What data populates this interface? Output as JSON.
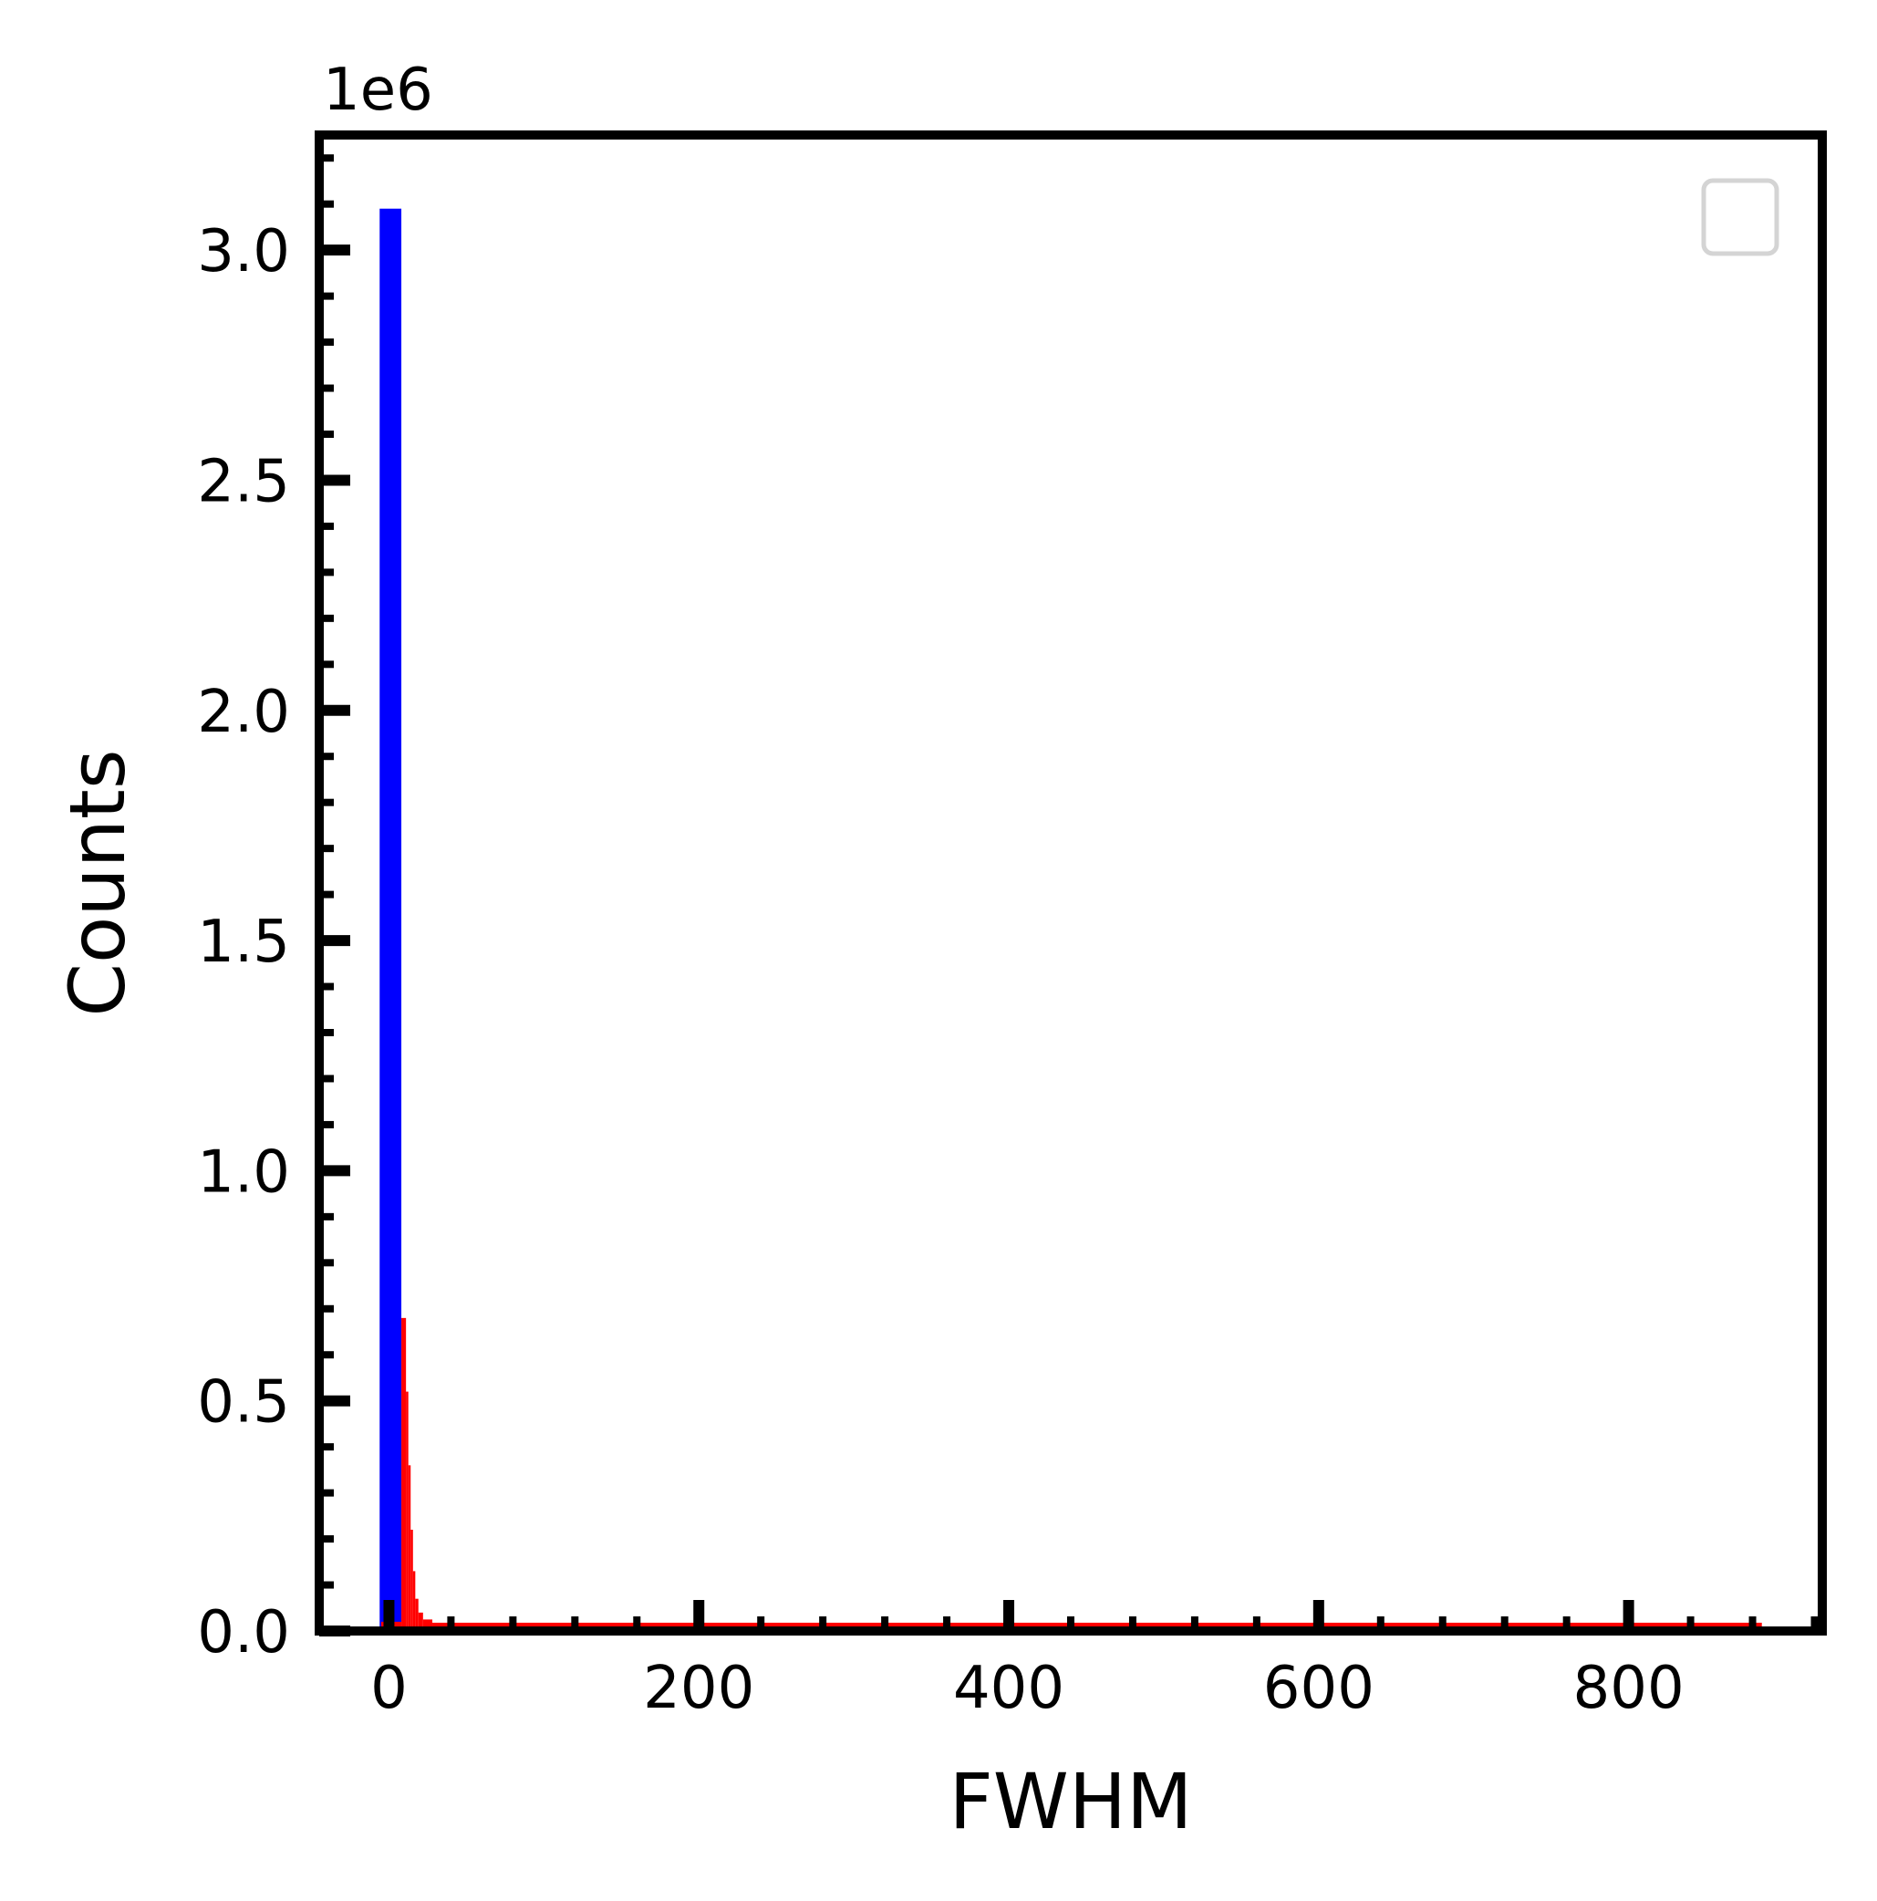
{
  "chart_data": {
    "type": "bar",
    "title": "",
    "xlabel": "FWHM",
    "ylabel": "Counts",
    "offset_label": "1e6",
    "xlim": [
      -45,
      925
    ],
    "ylim": [
      0,
      3.25
    ],
    "y_scale_multiplier": 1000000,
    "x_ticks": [
      0,
      200,
      400,
      600,
      800
    ],
    "x_tick_labels": [
      "0",
      "200",
      "400",
      "600",
      "800"
    ],
    "y_ticks": [
      0.0,
      0.5,
      1.0,
      1.5,
      2.0,
      2.5,
      3.0
    ],
    "y_tick_labels": [
      "0.0",
      "0.5",
      "1.0",
      "1.5",
      "2.0",
      "2.5",
      "3.0"
    ],
    "grid": false,
    "legend": {
      "placement": "top-right",
      "entries": []
    },
    "series": [
      {
        "color": "#0000ff",
        "bins": [
          {
            "x0": -6,
            "x1": 8,
            "value": 3.09
          }
        ]
      },
      {
        "color": "#ff0000",
        "bins": [
          {
            "x0": -5,
            "x1": 8,
            "value": 0.02
          },
          {
            "x0": 8,
            "x1": 11,
            "value": 0.68
          },
          {
            "x0": 11,
            "x1": 12.5,
            "value": 0.52
          },
          {
            "x0": 12.5,
            "x1": 14,
            "value": 0.36
          },
          {
            "x0": 14,
            "x1": 15.5,
            "value": 0.22
          },
          {
            "x0": 15.5,
            "x1": 17,
            "value": 0.13
          },
          {
            "x0": 17,
            "x1": 19,
            "value": 0.07
          },
          {
            "x0": 19,
            "x1": 22,
            "value": 0.04
          },
          {
            "x0": 22,
            "x1": 28,
            "value": 0.025
          },
          {
            "x0": 28,
            "x1": 886,
            "value": 0.018
          }
        ]
      }
    ]
  }
}
